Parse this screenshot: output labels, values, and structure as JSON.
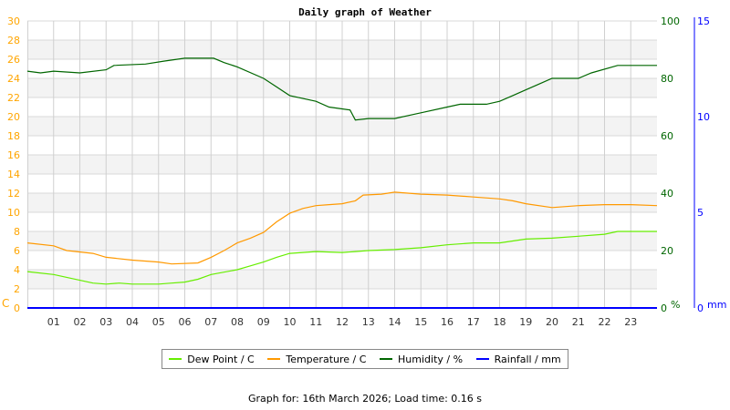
{
  "chart_data": {
    "type": "line",
    "title": "Daily graph of Weather",
    "x_ticks": [
      "01",
      "02",
      "03",
      "04",
      "05",
      "06",
      "07",
      "08",
      "09",
      "10",
      "11",
      "12",
      "13",
      "14",
      "15",
      "16",
      "17",
      "18",
      "19",
      "20",
      "21",
      "22",
      "23"
    ],
    "x_range_hours": [
      0,
      24
    ],
    "grid": true,
    "legend_placement": "bottom",
    "axes": {
      "left": {
        "unit": "C",
        "range": [
          0,
          30
        ],
        "step": 2,
        "color": "#ffa500"
      },
      "right_humidity": {
        "unit": "%",
        "range": [
          0,
          100
        ],
        "step": 20,
        "color": "#006600"
      },
      "right_rainfall": {
        "unit": "mm",
        "range": [
          0,
          15
        ],
        "step": 5,
        "color": "#0000ff"
      }
    },
    "series": [
      {
        "name": "Dew Point / C",
        "axis": "left",
        "color": "#66ee00",
        "x": [
          0,
          1,
          1.5,
          2,
          2.5,
          3,
          3.5,
          4,
          5,
          5.5,
          6,
          6.5,
          7,
          8,
          8.5,
          9,
          9.5,
          10,
          11,
          12,
          12.5,
          13,
          14,
          15,
          16,
          17,
          18,
          18.5,
          19,
          20,
          21,
          22,
          22.5,
          24
        ],
        "y": [
          3.8,
          3.5,
          3.2,
          2.9,
          2.6,
          2.5,
          2.6,
          2.5,
          2.5,
          2.6,
          2.7,
          3.0,
          3.5,
          4.0,
          4.4,
          4.8,
          5.3,
          5.7,
          5.9,
          5.8,
          5.9,
          6.0,
          6.1,
          6.3,
          6.6,
          6.8,
          6.8,
          7.0,
          7.2,
          7.3,
          7.5,
          7.7,
          8.0,
          8.0
        ]
      },
      {
        "name": "Temperature / C",
        "axis": "left",
        "color": "#ff9900",
        "x": [
          0,
          1,
          1.5,
          2.5,
          3,
          4,
          5,
          5.5,
          6.5,
          7,
          7.5,
          8,
          8.5,
          9,
          9.5,
          10,
          10.5,
          11,
          11.5,
          12,
          12.5,
          12.8,
          13.5,
          14,
          15,
          16,
          17,
          18,
          18.5,
          19,
          20,
          21,
          22,
          23,
          24
        ],
        "y": [
          6.8,
          6.5,
          6.0,
          5.7,
          5.3,
          5.0,
          4.8,
          4.6,
          4.7,
          5.3,
          6.0,
          6.8,
          7.3,
          7.9,
          9.0,
          9.9,
          10.4,
          10.7,
          10.8,
          10.9,
          11.2,
          11.8,
          11.9,
          12.1,
          11.9,
          11.8,
          11.6,
          11.4,
          11.2,
          10.9,
          10.5,
          10.7,
          10.8,
          10.8,
          10.7
        ]
      },
      {
        "name": "Humidity / %",
        "axis": "right_humidity",
        "color": "#006600",
        "x": [
          0,
          0.5,
          1,
          2,
          3,
          3.3,
          4.5,
          5.2,
          6,
          7.1,
          7.5,
          8,
          9,
          9.5,
          10,
          11,
          11.5,
          12.3,
          12.5,
          13,
          14,
          14.5,
          15,
          16,
          16.5,
          17.5,
          18,
          18.5,
          19,
          19.5,
          20,
          21,
          21.5,
          22.5,
          23,
          24
        ],
        "y": [
          82.5,
          81.9,
          82.5,
          81.9,
          83,
          84.5,
          85,
          86,
          87,
          87,
          85.5,
          84,
          80,
          77,
          74,
          72,
          70,
          69,
          65.5,
          66,
          66,
          67,
          68,
          70,
          71,
          71,
          72,
          74,
          76,
          78,
          80,
          80,
          81.9,
          84.5,
          84.5,
          84.5
        ]
      },
      {
        "name": "Rainfall / mm",
        "axis": "right_rainfall",
        "color": "#0000ff",
        "x": [
          0,
          24
        ],
        "y": [
          0,
          0
        ]
      }
    ]
  },
  "footer": "Graph for: 16th March 2026; Load time: 0.16 s"
}
